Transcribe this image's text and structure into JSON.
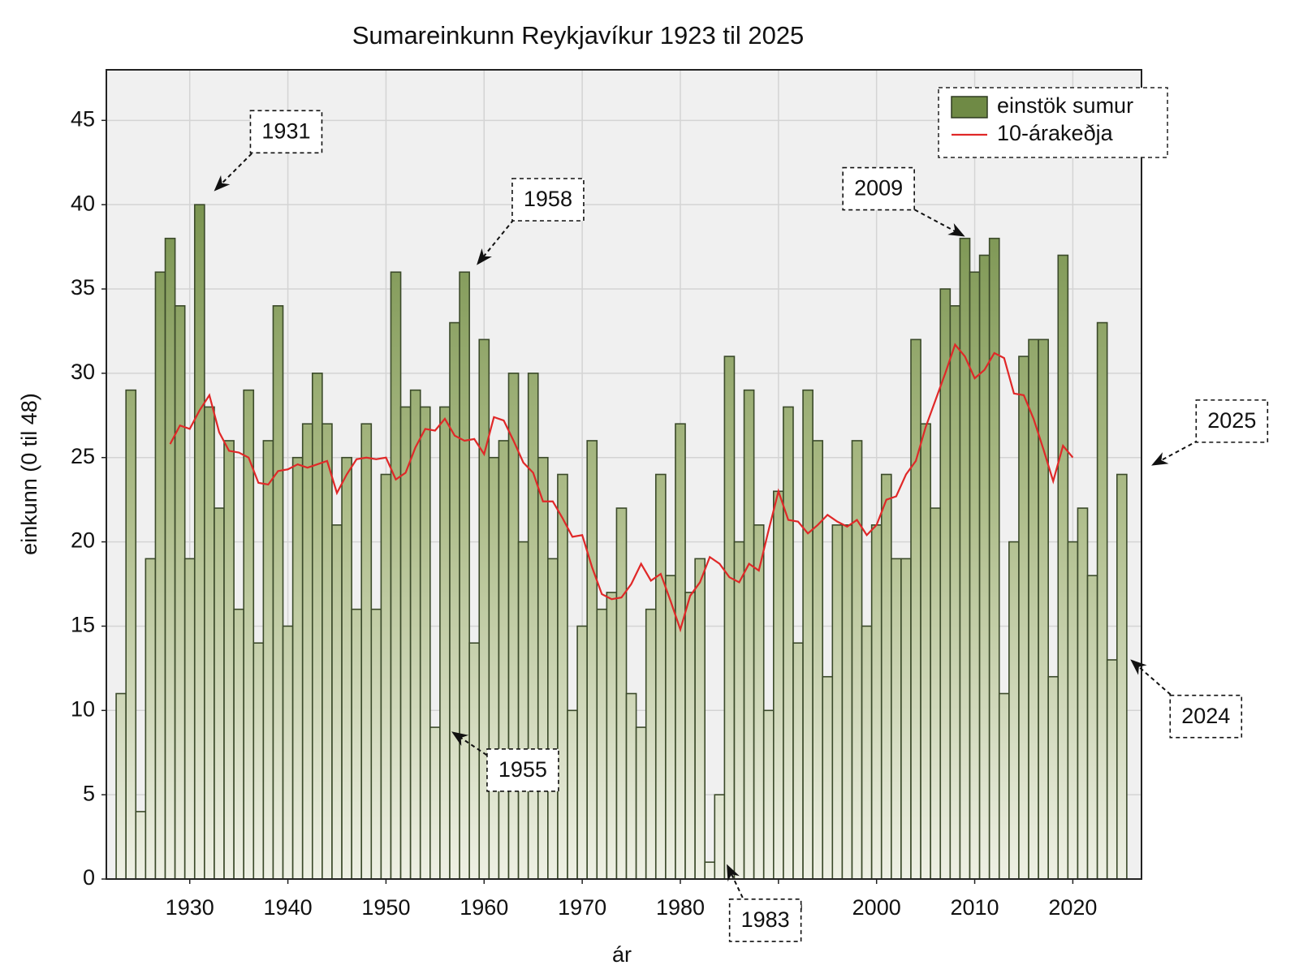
{
  "chart_data": {
    "type": "bar",
    "title": "Sumareinkunn Reykjavíkur 1923 til 2025",
    "x_label": "ár",
    "y_label": "einkunn (0 til 48)",
    "x": [
      1923,
      1924,
      1925,
      1926,
      1927,
      1928,
      1929,
      1930,
      1931,
      1932,
      1933,
      1934,
      1935,
      1936,
      1937,
      1938,
      1939,
      1940,
      1941,
      1942,
      1943,
      1944,
      1945,
      1946,
      1947,
      1948,
      1949,
      1950,
      1951,
      1952,
      1953,
      1954,
      1955,
      1956,
      1957,
      1958,
      1959,
      1960,
      1961,
      1962,
      1963,
      1964,
      1965,
      1966,
      1967,
      1968,
      1969,
      1970,
      1971,
      1972,
      1973,
      1974,
      1975,
      1976,
      1977,
      1978,
      1979,
      1980,
      1981,
      1982,
      1983,
      1984,
      1985,
      1986,
      1987,
      1988,
      1989,
      1990,
      1991,
      1992,
      1993,
      1994,
      1995,
      1996,
      1997,
      1998,
      1999,
      2000,
      2001,
      2002,
      2003,
      2004,
      2005,
      2006,
      2007,
      2008,
      2009,
      2010,
      2011,
      2012,
      2013,
      2014,
      2015,
      2016,
      2017,
      2018,
      2019,
      2020,
      2021,
      2022,
      2023,
      2024,
      2025
    ],
    "series": [
      {
        "name": "einstök sumur",
        "type": "bar",
        "color": "#6f8a45",
        "values": [
          11,
          29,
          4,
          19,
          36,
          38,
          34,
          19,
          40,
          28,
          22,
          26,
          16,
          29,
          14,
          26,
          34,
          15,
          25,
          27,
          30,
          27,
          21,
          25,
          16,
          27,
          16,
          24,
          36,
          28,
          29,
          28,
          9,
          28,
          33,
          36,
          14,
          32,
          25,
          26,
          30,
          20,
          30,
          25,
          19,
          24,
          10,
          15,
          26,
          16,
          17,
          22,
          11,
          9,
          16,
          24,
          18,
          27,
          17,
          19,
          1,
          5,
          31,
          20,
          29,
          21,
          10,
          23,
          28,
          14,
          29,
          26,
          12,
          21,
          21,
          26,
          15,
          21,
          24,
          19,
          19,
          32,
          27,
          22,
          35,
          34,
          38,
          36,
          37,
          38,
          11,
          20,
          31,
          32,
          32,
          12,
          37,
          20,
          22,
          18,
          33,
          13,
          24
        ]
      },
      {
        "name": "10-árakeðja",
        "type": "line",
        "color": "#e02828",
        "x": [
          1928,
          1929,
          1930,
          1931,
          1932,
          1933,
          1934,
          1935,
          1936,
          1937,
          1938,
          1939,
          1940,
          1941,
          1942,
          1943,
          1944,
          1945,
          1946,
          1947,
          1948,
          1949,
          1950,
          1951,
          1952,
          1953,
          1954,
          1955,
          1956,
          1957,
          1958,
          1959,
          1960,
          1961,
          1962,
          1963,
          1964,
          1965,
          1966,
          1967,
          1968,
          1969,
          1970,
          1971,
          1972,
          1973,
          1974,
          1975,
          1976,
          1977,
          1978,
          1979,
          1980,
          1981,
          1982,
          1983,
          1984,
          1985,
          1986,
          1987,
          1988,
          1989,
          1990,
          1991,
          1992,
          1993,
          1994,
          1995,
          1996,
          1997,
          1998,
          1999,
          2000,
          2001,
          2002,
          2003,
          2004,
          2005,
          2006,
          2007,
          2008,
          2009,
          2010,
          2011,
          2012,
          2013,
          2014,
          2015,
          2016,
          2017,
          2018,
          2019,
          2020
        ],
        "values": [
          25.8,
          26.9,
          26.7,
          27.8,
          28.7,
          26.5,
          25.4,
          25.3,
          25.0,
          23.5,
          23.4,
          24.2,
          24.3,
          24.6,
          24.4,
          24.6,
          24.8,
          22.9,
          24.0,
          24.9,
          25.0,
          24.9,
          25.0,
          23.7,
          24.1,
          25.6,
          26.7,
          26.6,
          27.3,
          26.3,
          26.0,
          26.1,
          25.2,
          27.4,
          27.2,
          26.0,
          24.7,
          24.1,
          22.4,
          22.4,
          21.4,
          20.3,
          20.4,
          18.5,
          16.9,
          16.6,
          16.7,
          17.5,
          18.7,
          17.7,
          18.1,
          16.5,
          14.8,
          16.8,
          17.6,
          19.1,
          18.7,
          17.9,
          17.6,
          18.7,
          18.3,
          20.7,
          23.0,
          21.3,
          21.2,
          20.5,
          21.0,
          21.6,
          21.2,
          20.9,
          21.3,
          20.4,
          21.0,
          22.5,
          22.7,
          24.0,
          24.8,
          26.8,
          28.4,
          30.0,
          31.7,
          31.0,
          29.7,
          30.2,
          31.2,
          30.9,
          28.8,
          28.7,
          27.3,
          25.5,
          23.6,
          25.7,
          25.0
        ]
      }
    ],
    "xlim": [
      1921.5,
      2027
    ],
    "xticks": [
      1930,
      1940,
      1950,
      1960,
      1970,
      1980,
      1990,
      2000,
      2010,
      2020
    ],
    "ylim": [
      0,
      48
    ],
    "yticks": [
      0,
      5,
      10,
      15,
      20,
      25,
      30,
      35,
      40,
      45
    ],
    "grid": true,
    "legend": "upper right",
    "annotations": [
      "1931",
      "1958",
      "1955",
      "1983",
      "2009",
      "2025",
      "2024"
    ]
  }
}
